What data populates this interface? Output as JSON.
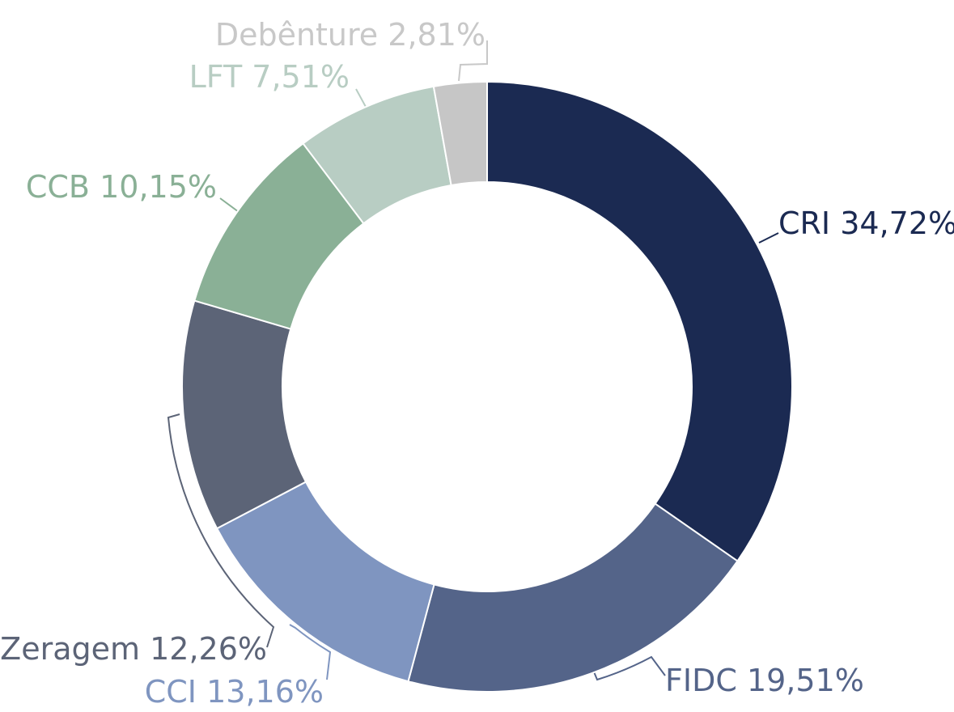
{
  "chart_data": {
    "type": "donut",
    "categories": [
      "CRI",
      "FIDC",
      "CCI",
      "Zeragem",
      "CCB",
      "LFT",
      "Debênture"
    ],
    "values": [
      34.72,
      19.51,
      13.16,
      12.26,
      10.15,
      7.51,
      2.81
    ],
    "value_labels": [
      "34,72%",
      "19,51%",
      "13,16%",
      "12,26%",
      "10,15%",
      "7,51%",
      "2,81%"
    ],
    "colors": [
      "#1b2a52",
      "#546489",
      "#7f95c0",
      "#5c6477",
      "#8ab096",
      "#b8cdc3",
      "#c6c6c6"
    ],
    "label_colors": [
      "#1b2a52",
      "#546489",
      "#7f95c0",
      "#5c6477",
      "#8ab096",
      "#b8cdc3",
      "#c8c8c8"
    ]
  }
}
